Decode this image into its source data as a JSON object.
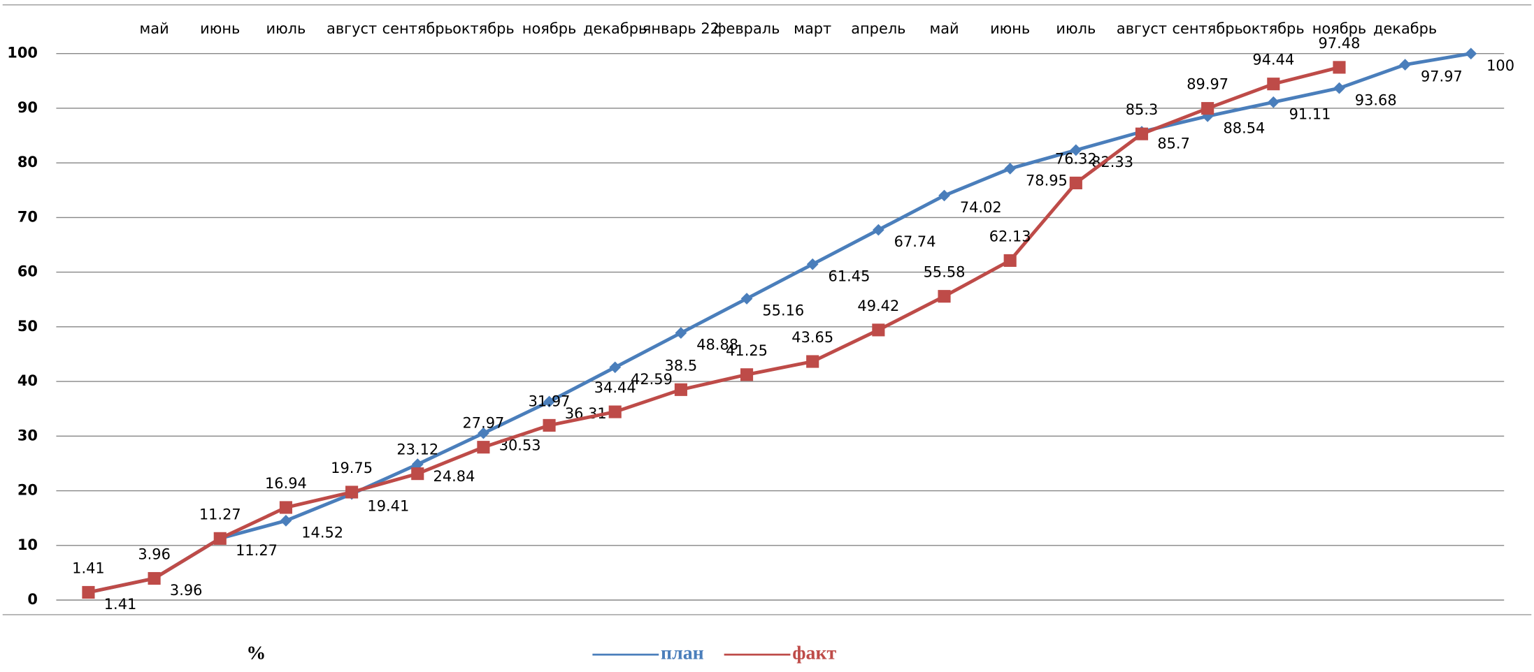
{
  "chart_data": {
    "type": "line",
    "x_label": "%",
    "categories": [
      null,
      "май",
      "июнь",
      "июль",
      "август",
      "сентябрь",
      "октябрь",
      "ноябрь",
      "декабрь",
      "январь 22",
      "февраль",
      "март",
      "апрель",
      "май",
      "июнь",
      "июль",
      "август",
      "сентябрь",
      "октябрь",
      "ноябрь",
      "декабрь",
      null
    ],
    "series": [
      {
        "name": "план",
        "color": "#4a7ebb",
        "marker": "diamond",
        "values": [
          1.41,
          3.96,
          11.27,
          14.52,
          19.41,
          24.84,
          30.53,
          36.31,
          42.59,
          48.88,
          55.16,
          61.45,
          67.74,
          74.02,
          78.95,
          82.33,
          85.7,
          88.54,
          91.11,
          93.68,
          97.97,
          100
        ]
      },
      {
        "name": "факт",
        "color": "#be4b48",
        "marker": "square",
        "values": [
          1.41,
          3.96,
          11.27,
          16.94,
          19.75,
          23.12,
          27.97,
          31.97,
          34.44,
          38.5,
          41.25,
          43.65,
          49.42,
          55.58,
          62.13,
          76.32,
          85.3,
          89.97,
          94.44,
          97.48,
          null,
          null
        ]
      }
    ],
    "ylim": [
      0,
      100
    ],
    "yticks": [
      0,
      10,
      20,
      30,
      40,
      50,
      60,
      70,
      80,
      90,
      100
    ],
    "grid": true,
    "legend": "bottom"
  }
}
